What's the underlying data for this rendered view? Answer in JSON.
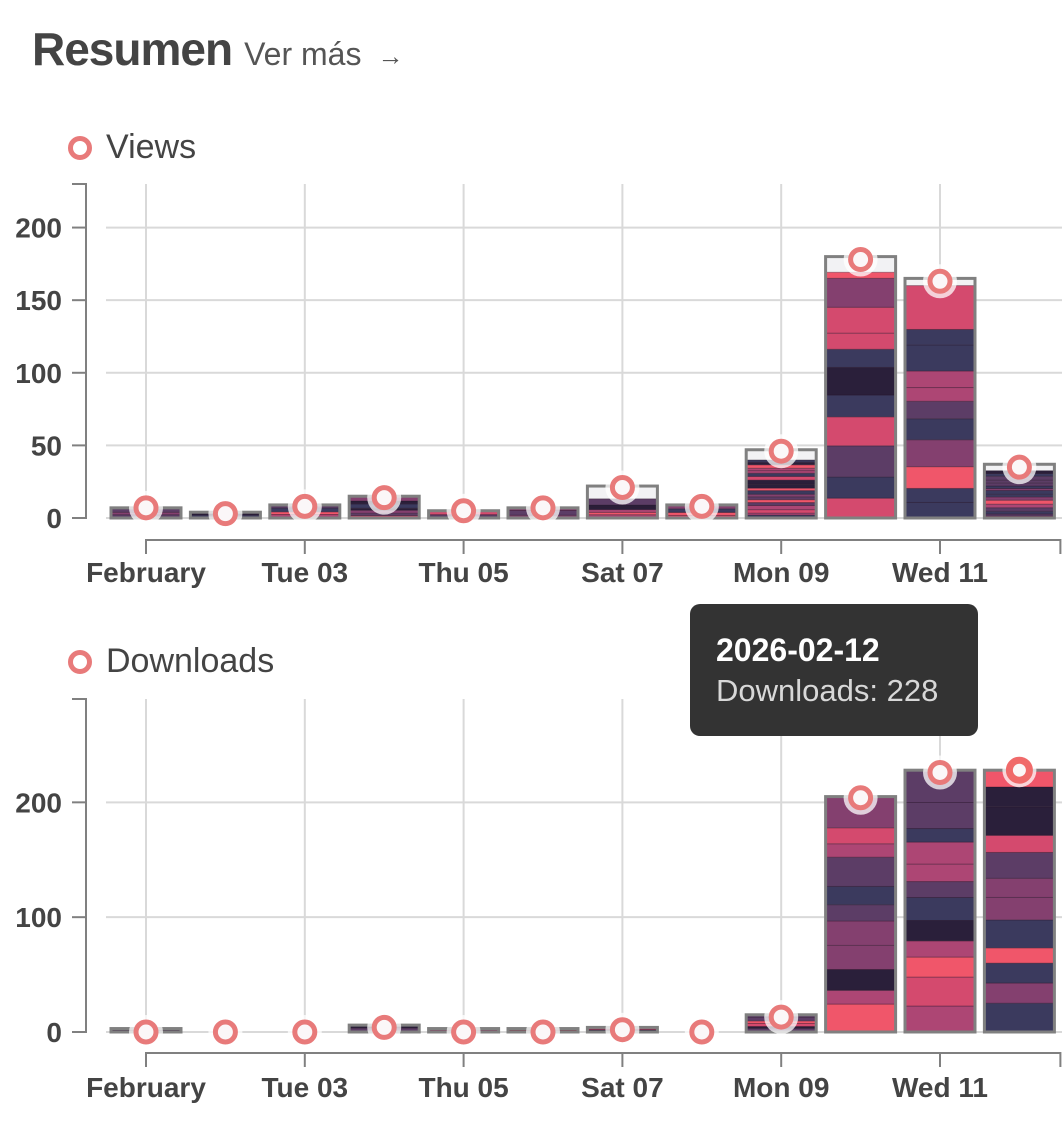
{
  "header": {
    "title": "Resumen",
    "more_label": "Ver más",
    "more_arrow": "→"
  },
  "colors": {
    "marker": "#e87a7a",
    "marker_active": "#f06a6a",
    "bar_outline": "#808080",
    "grid": "#d9d9d9",
    "axis": "#808080",
    "stack_palette": [
      "#3b3a5e",
      "#84406f",
      "#ad4674",
      "#5c3d66",
      "#d44a6e",
      "#f0566a",
      "#2a1f3a"
    ]
  },
  "tooltip": {
    "date": "2026-02-12",
    "text": "Downloads: 228"
  },
  "chart_data": [
    {
      "type": "bar",
      "title": "Views",
      "legend": "Views",
      "legend_position": "top-left",
      "dates": [
        "2026-02-01",
        "2026-02-02",
        "2026-02-03",
        "2026-02-04",
        "2026-02-05",
        "2026-02-06",
        "2026-02-07",
        "2026-02-08",
        "2026-02-09",
        "2026-02-10",
        "2026-02-11",
        "2026-02-12"
      ],
      "x_tick_labels": [
        "February",
        "Tue 03",
        "Thu 05",
        "Sat 07",
        "Mon 09",
        "Wed 11"
      ],
      "x_tick_indices": [
        0,
        2,
        4,
        6,
        8,
        10
      ],
      "values": [
        7,
        3,
        8,
        14,
        5,
        7,
        21,
        8,
        46,
        178,
        163,
        35
      ],
      "bar_totals": [
        7,
        4,
        9,
        15,
        5,
        7,
        22,
        9,
        47,
        180,
        165,
        37
      ],
      "stacked_fraction_filled": [
        1,
        1,
        1,
        1,
        1,
        1,
        0.6,
        1,
        0.85,
        0.94,
        0.97,
        0.88
      ],
      "yticks": [
        0,
        50,
        100,
        150,
        200
      ],
      "ylim": [
        0,
        230
      ],
      "grid": true
    },
    {
      "type": "bar",
      "title": "Downloads",
      "legend": "Downloads",
      "legend_position": "top-left",
      "dates": [
        "2026-02-01",
        "2026-02-02",
        "2026-02-03",
        "2026-02-04",
        "2026-02-05",
        "2026-02-06",
        "2026-02-07",
        "2026-02-08",
        "2026-02-09",
        "2026-02-10",
        "2026-02-11",
        "2026-02-12"
      ],
      "x_tick_labels": [
        "February",
        "Tue 03",
        "Thu 05",
        "Sat 07",
        "Mon 09",
        "Wed 11"
      ],
      "x_tick_indices": [
        0,
        2,
        4,
        6,
        8,
        10
      ],
      "values": [
        0,
        0,
        0,
        4,
        0,
        0,
        2,
        0,
        13,
        204,
        226,
        228
      ],
      "bar_totals": [
        3,
        0,
        0,
        6,
        3,
        3,
        4,
        0,
        15,
        205,
        228,
        228
      ],
      "stacked_fraction_filled": [
        1,
        1,
        1,
        1,
        1,
        1,
        1,
        1,
        1,
        1,
        1,
        1
      ],
      "highlighted_index": 11,
      "yticks": [
        0,
        100,
        200
      ],
      "ylim": [
        0,
        290
      ],
      "grid": true
    }
  ]
}
